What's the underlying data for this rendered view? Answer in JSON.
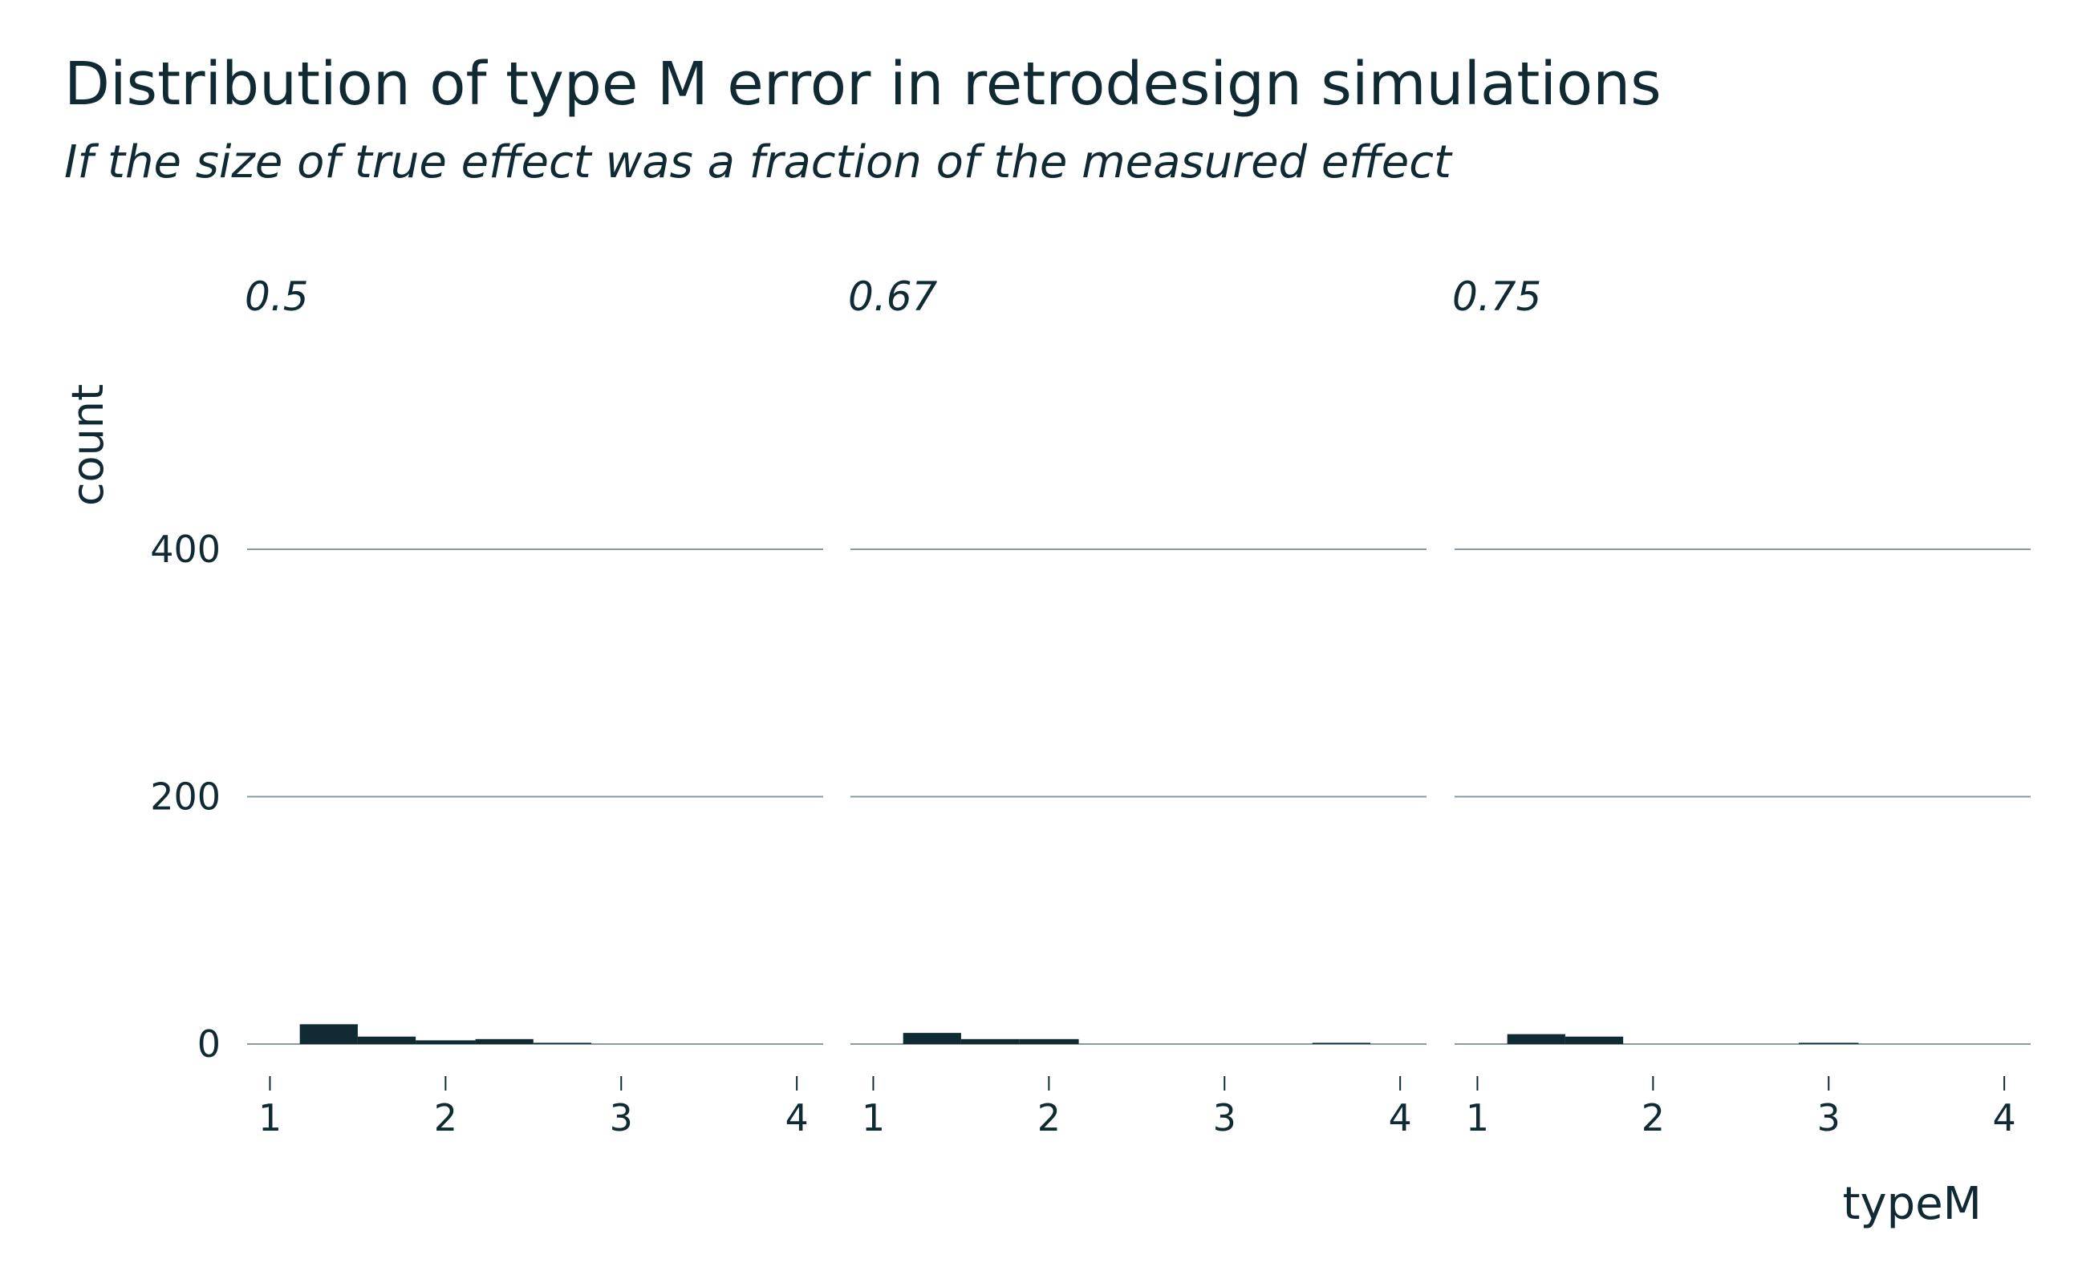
{
  "chart_data": {
    "type": "bar",
    "title": "Distribution of type M error in retrodesign simulations",
    "subtitle": "If the size of true effect was a fraction of the measured effect",
    "xlabel": "typeM",
    "ylabel": "count",
    "xlim": [
      0.87,
      4.15
    ],
    "ylim": [
      0,
      510
    ],
    "x_ticks": [
      "1",
      "2",
      "3",
      "4"
    ],
    "y_ticks": [
      "0",
      "200",
      "400"
    ],
    "grid": true,
    "bin_width": 0.333,
    "bar_color": "#0f2a33",
    "facets": [
      {
        "label": "0.5",
        "bins": [
          {
            "x0": 1.17,
            "x1": 1.5,
            "count": 16
          },
          {
            "x0": 1.5,
            "x1": 1.83,
            "count": 6
          },
          {
            "x0": 1.83,
            "x1": 2.17,
            "count": 3
          },
          {
            "x0": 2.17,
            "x1": 2.5,
            "count": 4
          },
          {
            "x0": 2.5,
            "x1": 2.83,
            "count": 1
          }
        ]
      },
      {
        "label": "0.67",
        "bins": [
          {
            "x0": 1.17,
            "x1": 1.5,
            "count": 9
          },
          {
            "x0": 1.5,
            "x1": 1.83,
            "count": 4
          },
          {
            "x0": 1.83,
            "x1": 2.17,
            "count": 4
          },
          {
            "x0": 3.5,
            "x1": 3.83,
            "count": 1
          }
        ]
      },
      {
        "label": "0.75",
        "bins": [
          {
            "x0": 1.17,
            "x1": 1.5,
            "count": 8
          },
          {
            "x0": 1.5,
            "x1": 1.83,
            "count": 6
          },
          {
            "x0": 2.83,
            "x1": 3.17,
            "count": 1
          }
        ]
      }
    ]
  }
}
